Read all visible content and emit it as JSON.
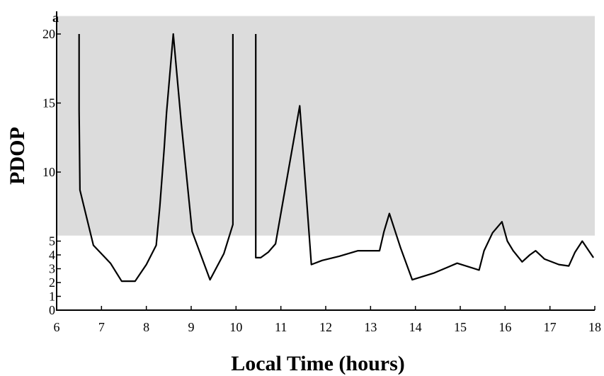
{
  "chart_data": {
    "type": "line",
    "title": "",
    "corner_label": "a",
    "xlabel": "Local Time (hours)",
    "ylabel": "PDOP",
    "xlim": [
      6,
      18
    ],
    "ylim": [
      0,
      20
    ],
    "x_ticks": [
      6,
      7,
      8,
      9,
      10,
      11,
      12,
      13,
      14,
      15,
      16,
      17,
      18
    ],
    "y_ticks": [
      0,
      1,
      2,
      3,
      4,
      5,
      10,
      15,
      20
    ],
    "shaded_region": {
      "y_from": 5.4,
      "y_to": 21.3,
      "color": "#dcdcdc"
    },
    "grid": false,
    "legend": "none",
    "line_color": "#000000",
    "series": [
      {
        "segments": [
          [
            [
              6.5,
              20
            ],
            [
              6.5,
              14.5
            ],
            [
              6.52,
              8.7
            ],
            [
              6.82,
              4.7
            ],
            [
              7.2,
              3.4
            ],
            [
              7.45,
              2.1
            ],
            [
              7.75,
              2.1
            ],
            [
              8.0,
              3.3
            ],
            [
              8.22,
              4.7
            ],
            [
              8.3,
              7.5
            ],
            [
              8.35,
              9.6
            ],
            [
              8.4,
              11.8
            ],
            [
              8.45,
              14.3
            ],
            [
              8.6,
              20
            ],
            [
              8.78,
              13.5
            ],
            [
              9.02,
              5.7
            ],
            [
              9.42,
              2.2
            ],
            [
              9.73,
              4.1
            ],
            [
              9.93,
              6.2
            ],
            [
              9.93,
              20
            ]
          ],
          [
            [
              10.44,
              20
            ],
            [
              10.44,
              3.8
            ],
            [
              10.55,
              3.8
            ],
            [
              10.72,
              4.2
            ],
            [
              10.88,
              4.8
            ],
            [
              11.42,
              14.8
            ],
            [
              11.68,
              3.3
            ],
            [
              11.92,
              3.6
            ],
            [
              12.3,
              3.9
            ],
            [
              12.72,
              4.3
            ],
            [
              13.2,
              4.3
            ],
            [
              13.3,
              5.7
            ],
            [
              13.42,
              7.0
            ],
            [
              13.67,
              4.5
            ],
            [
              13.93,
              2.2
            ],
            [
              14.42,
              2.7
            ],
            [
              14.93,
              3.4
            ],
            [
              15.42,
              2.9
            ],
            [
              15.53,
              4.3
            ],
            [
              15.72,
              5.6
            ],
            [
              15.93,
              6.4
            ],
            [
              16.05,
              5.0
            ],
            [
              16.18,
              4.3
            ],
            [
              16.38,
              3.5
            ],
            [
              16.55,
              4.0
            ],
            [
              16.68,
              4.3
            ],
            [
              16.88,
              3.7
            ],
            [
              17.2,
              3.3
            ],
            [
              17.42,
              3.2
            ],
            [
              17.56,
              4.2
            ],
            [
              17.72,
              5.0
            ],
            [
              17.97,
              3.8
            ]
          ]
        ]
      }
    ]
  }
}
